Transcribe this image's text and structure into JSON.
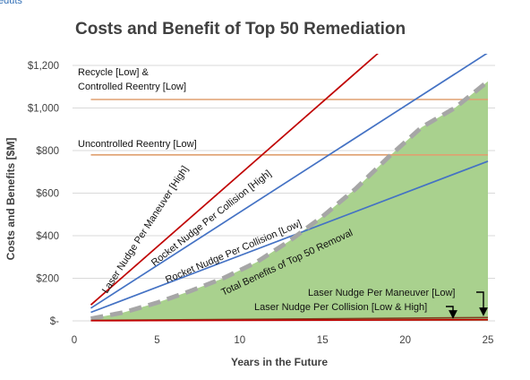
{
  "cut_text": "eduts",
  "chart_data": {
    "type": "line",
    "title": "Costs and Benefit of Top 50 Remediation",
    "xlabel": "Years in the Future",
    "ylabel": "Costs and Benefits [$M]",
    "xlim": [
      0,
      25
    ],
    "ylim": [
      0,
      1200
    ],
    "x_ticks": [
      0,
      5,
      10,
      15,
      20,
      25
    ],
    "x_tick_labels": [
      "0",
      "5",
      "10",
      "15",
      "20",
      "25"
    ],
    "y_ticks": [
      0,
      200,
      400,
      600,
      800,
      1000,
      1200
    ],
    "y_tick_labels": [
      "$-",
      "$200",
      "$400",
      "$600",
      "$800",
      "$1,000",
      "$1,200"
    ],
    "grid": "horizontal",
    "legend": "none",
    "series": [
      {
        "name": "Recycle [Low] & Controlled Reentry [Low]",
        "style": "horizontal",
        "color": "#e0a070",
        "x": [
          1,
          25
        ],
        "y": [
          1040,
          1040
        ]
      },
      {
        "name": "Uncontrolled Reentry [Low]",
        "style": "horizontal",
        "color": "#e0a070",
        "x": [
          1,
          25
        ],
        "y": [
          780,
          780
        ]
      },
      {
        "name": "Laser Nudge Per Maneuver [High]",
        "style": "line",
        "color": "#c00000",
        "x": [
          1,
          18.4
        ],
        "y": [
          75,
          1260
        ]
      },
      {
        "name": "Rocket Nudge Per Collision [High]",
        "style": "line",
        "color": "#4472c4",
        "x": [
          1,
          25
        ],
        "y": [
          60,
          1260
        ]
      },
      {
        "name": "Rocket Nudge Per Collision [Low]",
        "style": "line",
        "color": "#4472c4",
        "x": [
          1,
          25
        ],
        "y": [
          40,
          750
        ]
      },
      {
        "name": "Total Benefits of Top 50 Removal",
        "style": "area-dashed",
        "color": "#a9d18e",
        "x": [
          1,
          3,
          5,
          7,
          9,
          11,
          13,
          15,
          17,
          19,
          21,
          23,
          25
        ],
        "y": [
          10,
          40,
          85,
          140,
          200,
          275,
          375,
          490,
          620,
          770,
          910,
          1000,
          1125
        ]
      },
      {
        "name": "Laser Nudge Per Maneuver [Low]",
        "style": "line",
        "color": "#7f3f20",
        "x": [
          1,
          25
        ],
        "y": [
          2,
          15
        ]
      },
      {
        "name": "Laser Nudge Per Collision [Low & High]",
        "style": "line",
        "color": "#c00000",
        "x": [
          1,
          25
        ],
        "y": [
          1,
          5
        ]
      }
    ],
    "annotations": {
      "recycle_line1": "Recycle [Low] &",
      "recycle_line2": "Controlled Reentry [Low]",
      "uncontrolled": "Uncontrolled Reentry [Low]",
      "laser_high": "Laser Nudge Per Maneuver [High]",
      "rocket_high": "Rocket Nudge Per Collision [High]",
      "rocket_low": "Rocket Nudge Per Collision [Low]",
      "total_benefits": "Total Benefits of Top 50 Removal",
      "laser_low": "Laser Nudge Per Maneuver [Low]",
      "laser_collision": "Laser Nudge Per Collision [Low & High]"
    }
  }
}
